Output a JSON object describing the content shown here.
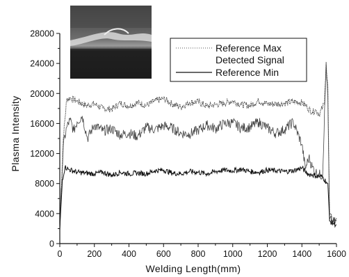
{
  "chart_data": {
    "type": "line",
    "title": "",
    "xlabel": "Welding Length(mm)",
    "ylabel": "Plasma Intensity",
    "xlim": [
      0,
      1600
    ],
    "ylim": [
      0,
      28000
    ],
    "xticks": [
      "0",
      "200",
      "400",
      "600",
      "800",
      "1000",
      "1200",
      "1400",
      "1600"
    ],
    "yticks": [
      "0",
      "4000",
      "8000",
      "12000",
      "16000",
      "20000",
      "24000",
      "28000"
    ],
    "grid": false,
    "legend_position": "top-right",
    "inset_image": "weld-bead-photo",
    "series": [
      {
        "name": "Reference Max",
        "style": "dotted",
        "x": [
          0,
          20,
          40,
          60,
          100,
          150,
          200,
          250,
          300,
          350,
          400,
          450,
          500,
          550,
          600,
          650,
          700,
          750,
          800,
          850,
          900,
          950,
          1000,
          1050,
          1100,
          1150,
          1200,
          1250,
          1300,
          1350,
          1400,
          1430,
          1460,
          1480,
          1500,
          1520,
          1530,
          1540,
          1550,
          1560,
          1580,
          1600
        ],
        "y": [
          2000,
          14000,
          19200,
          19400,
          19000,
          18400,
          18600,
          18000,
          17900,
          18700,
          18300,
          18800,
          18400,
          19000,
          19300,
          18600,
          18200,
          18800,
          18900,
          18300,
          18500,
          18700,
          19000,
          18500,
          18400,
          19000,
          18600,
          18600,
          18700,
          18900,
          18800,
          18200,
          17500,
          17800,
          17200,
          18200,
          18600,
          24200,
          21000,
          4000,
          3000,
          3400
        ]
      },
      {
        "name": "Detected Signal",
        "style": "thin",
        "x": [
          0,
          20,
          40,
          60,
          80,
          100,
          130,
          160,
          200,
          250,
          300,
          350,
          400,
          450,
          500,
          550,
          600,
          650,
          700,
          750,
          800,
          850,
          900,
          950,
          1000,
          1050,
          1100,
          1150,
          1200,
          1250,
          1300,
          1350,
          1400,
          1420,
          1440,
          1460,
          1480,
          1500,
          1520,
          1540,
          1550,
          1560,
          1580,
          1600
        ],
        "y": [
          2000,
          13000,
          15500,
          16500,
          15000,
          16200,
          17000,
          14000,
          15800,
          15000,
          15300,
          14500,
          14700,
          14300,
          15500,
          15200,
          15700,
          15400,
          14700,
          14600,
          15100,
          15800,
          15300,
          16000,
          16100,
          15400,
          15500,
          16200,
          15400,
          14700,
          15200,
          16200,
          13200,
          10000,
          11500,
          10200,
          9500,
          9200,
          9100,
          24000,
          19000,
          3200,
          2800,
          3000
        ]
      },
      {
        "name": "Reference Min",
        "style": "solid",
        "x": [
          0,
          15,
          30,
          50,
          100,
          150,
          200,
          250,
          300,
          350,
          400,
          450,
          500,
          550,
          600,
          650,
          700,
          750,
          800,
          850,
          900,
          950,
          1000,
          1050,
          1100,
          1150,
          1200,
          1250,
          1300,
          1350,
          1400,
          1420,
          1440,
          1460,
          1480,
          1500,
          1520,
          1540,
          1550,
          1560,
          1580,
          1600
        ],
        "y": [
          1800,
          8500,
          10200,
          9900,
          9500,
          9400,
          9300,
          9500,
          9100,
          9500,
          9300,
          9400,
          9300,
          9700,
          9800,
          9400,
          9300,
          9600,
          9500,
          9300,
          9600,
          9800,
          9700,
          9900,
          9600,
          9500,
          9800,
          9700,
          9600,
          9700,
          10100,
          9600,
          9200,
          9200,
          9000,
          9000,
          8900,
          8200,
          8000,
          3000,
          2700,
          2500
        ]
      }
    ]
  }
}
